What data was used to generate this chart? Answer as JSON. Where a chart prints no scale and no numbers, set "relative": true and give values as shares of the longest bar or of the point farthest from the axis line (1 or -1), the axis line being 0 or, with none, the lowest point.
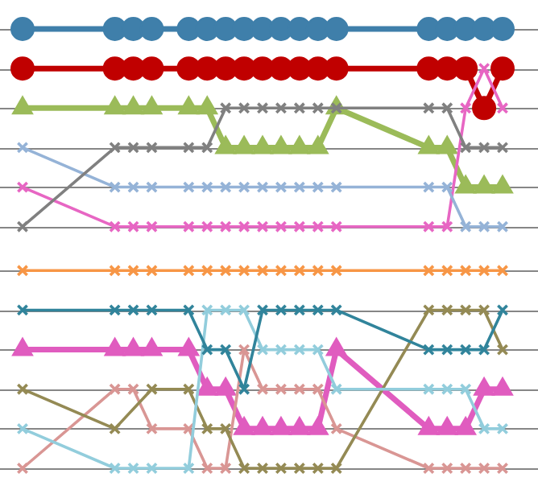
{
  "chart_data": {
    "type": "line",
    "relative": true,
    "grid": "y",
    "legend": false,
    "categories": [
      null,
      null,
      null,
      null,
      null,
      null,
      null,
      null,
      null,
      null,
      null,
      null,
      null,
      null,
      null,
      null,
      null,
      null,
      null,
      null,
      null,
      null,
      null,
      null,
      null,
      null,
      null
    ],
    "series": [
      {
        "color": "#3f7faa",
        "marker": "circle",
        "values": [
          1,
          null,
          null,
          null,
          null,
          1,
          1,
          1,
          null,
          1,
          1,
          1,
          1,
          1,
          1,
          1,
          1,
          1,
          null,
          null,
          null,
          null,
          1,
          1,
          1,
          1,
          1
        ]
      },
      {
        "color": "#c00000",
        "marker": "circle",
        "values": [
          0.91,
          null,
          null,
          null,
          null,
          0.91,
          0.91,
          0.91,
          null,
          0.91,
          0.91,
          0.91,
          0.91,
          0.91,
          0.91,
          0.91,
          0.91,
          0.91,
          null,
          null,
          null,
          null,
          0.91,
          0.91,
          0.91,
          0.82,
          0.91
        ]
      },
      {
        "color": "#9bbb59",
        "marker": "triangle",
        "values": [
          0.82,
          null,
          null,
          null,
          null,
          0.82,
          0.82,
          0.82,
          null,
          0.82,
          0.82,
          0.73,
          0.73,
          0.73,
          0.73,
          0.73,
          0.73,
          0.82,
          null,
          null,
          null,
          null,
          0.73,
          0.73,
          0.64,
          0.64,
          0.64
        ]
      },
      {
        "color": "#808080",
        "marker": "cross",
        "values": [
          0.55,
          null,
          null,
          null,
          null,
          0.73,
          0.73,
          0.73,
          null,
          0.73,
          0.73,
          0.82,
          0.82,
          0.82,
          0.82,
          0.82,
          0.82,
          0.82,
          null,
          null,
          null,
          null,
          0.82,
          0.82,
          0.73,
          0.73,
          0.73
        ]
      },
      {
        "color": "#95b3d7",
        "marker": "cross",
        "values": [
          0.73,
          null,
          null,
          null,
          null,
          0.64,
          0.64,
          0.64,
          null,
          0.64,
          0.64,
          0.64,
          0.64,
          0.64,
          0.64,
          0.64,
          0.64,
          0.64,
          null,
          null,
          null,
          null,
          0.64,
          0.64,
          0.55,
          0.55,
          0.55
        ]
      },
      {
        "color": "#e766c3",
        "marker": "cross",
        "values": [
          0.64,
          null,
          null,
          null,
          null,
          0.55,
          0.55,
          0.55,
          null,
          0.55,
          0.55,
          0.55,
          0.55,
          0.55,
          0.55,
          0.55,
          0.55,
          0.55,
          null,
          null,
          null,
          null,
          0.55,
          0.55,
          0.82,
          0.91,
          0.82
        ]
      },
      {
        "color": "#f79646",
        "marker": "cross",
        "values": [
          0.45,
          null,
          null,
          null,
          null,
          0.45,
          0.45,
          0.45,
          null,
          0.45,
          0.45,
          0.45,
          0.45,
          0.45,
          0.45,
          0.45,
          0.45,
          0.45,
          null,
          null,
          null,
          null,
          0.45,
          0.45,
          0.45,
          0.45,
          0.45
        ]
      },
      {
        "color": "#31849b",
        "marker": "cross",
        "values": [
          0.36,
          null,
          null,
          null,
          null,
          0.36,
          0.36,
          0.36,
          null,
          0.36,
          0.27,
          0.27,
          0.18,
          0.36,
          0.36,
          0.36,
          0.36,
          0.36,
          null,
          null,
          null,
          null,
          0.27,
          0.27,
          0.27,
          0.27,
          0.36
        ]
      },
      {
        "color": "#92cddc",
        "marker": "cross",
        "values": [
          0.09,
          null,
          null,
          null,
          null,
          0,
          0,
          0,
          null,
          0,
          0.36,
          0.36,
          0.36,
          0.27,
          0.27,
          0.27,
          0.27,
          0.18,
          null,
          null,
          null,
          null,
          0.18,
          0.18,
          0.18,
          0.09,
          0.09
        ]
      },
      {
        "color": "#e05cbf",
        "marker": "triangle",
        "values": [
          0.27,
          null,
          null,
          null,
          null,
          0.27,
          0.27,
          0.27,
          null,
          0.27,
          0.18,
          0.18,
          0.09,
          0.09,
          0.09,
          0.09,
          0.09,
          0.27,
          null,
          null,
          null,
          null,
          0.09,
          0.09,
          0.09,
          0.18,
          0.18
        ]
      },
      {
        "color": "#948a54",
        "marker": "cross",
        "values": [
          0.18,
          null,
          null,
          null,
          null,
          0.09,
          null,
          0.18,
          null,
          0.18,
          0.09,
          0.09,
          0,
          0,
          0,
          0,
          0,
          0,
          null,
          null,
          null,
          null,
          0.36,
          0.36,
          0.36,
          0.36,
          0.27
        ]
      },
      {
        "color": "#d99694",
        "marker": "cross",
        "values": [
          0,
          null,
          null,
          null,
          null,
          0.18,
          0.18,
          0.09,
          null,
          0.09,
          0,
          0,
          0.27,
          0.18,
          0.18,
          0.18,
          0.18,
          0.09,
          null,
          null,
          null,
          null,
          0,
          0,
          0,
          0,
          0
        ]
      }
    ]
  }
}
